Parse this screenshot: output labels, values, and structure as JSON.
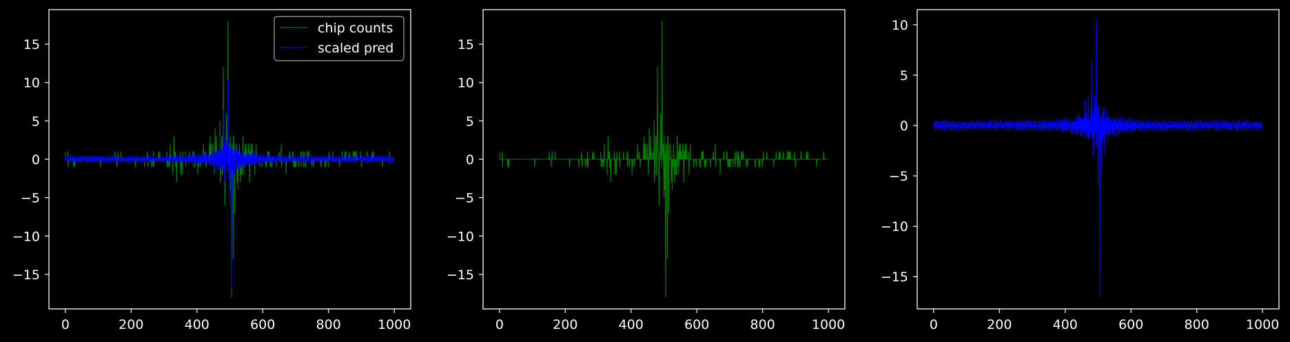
{
  "theme": {
    "background": "#000000",
    "axes_color": "#ffffff",
    "text_color": "#ffffff",
    "legend_edge": "#cccccc"
  },
  "chart_data": [
    {
      "type": "line",
      "panel": "left",
      "xlim": [
        -50,
        1050
      ],
      "ylim": [
        -19.5,
        19.5
      ],
      "xticks": [
        0,
        200,
        400,
        600,
        800,
        1000
      ],
      "yticks": [
        -15,
        -10,
        -5,
        0,
        5,
        10,
        15
      ],
      "grid": false,
      "legend": {
        "placement": "upper-right",
        "entries": [
          "chip counts",
          "scaled pred"
        ]
      },
      "series": [
        {
          "name": "chip counts",
          "color": "#008000",
          "x_range": [
            0,
            999
          ],
          "peaks": [
            {
              "x": 330,
              "y": 3
            },
            {
              "x": 338,
              "y": -3
            },
            {
              "x": 420,
              "y": 2
            },
            {
              "x": 440,
              "y": 3
            },
            {
              "x": 455,
              "y": 4
            },
            {
              "x": 470,
              "y": 5
            },
            {
              "x": 480,
              "y": 12
            },
            {
              "x": 485,
              "y": -6
            },
            {
              "x": 490,
              "y": 6
            },
            {
              "x": 494,
              "y": 18
            },
            {
              "x": 500,
              "y": -5
            },
            {
              "x": 505,
              "y": -18
            },
            {
              "x": 510,
              "y": -13
            },
            {
              "x": 515,
              "y": -7
            },
            {
              "x": 525,
              "y": -4
            },
            {
              "x": 540,
              "y": 3
            },
            {
              "x": 560,
              "y": -3
            },
            {
              "x": 580,
              "y": 2
            }
          ]
        },
        {
          "name": "scaled pred",
          "color": "#0000ff",
          "x_range": [
            0,
            999
          ],
          "peaks": [
            {
              "x": 470,
              "y": 3
            },
            {
              "x": 480,
              "y": 6.5
            },
            {
              "x": 485,
              "y": -3
            },
            {
              "x": 494,
              "y": 10.3
            },
            {
              "x": 500,
              "y": -6
            },
            {
              "x": 505,
              "y": -17
            },
            {
              "x": 512,
              "y": -5
            }
          ]
        }
      ]
    },
    {
      "type": "line",
      "panel": "middle",
      "xlim": [
        -50,
        1050
      ],
      "ylim": [
        -19.5,
        19.5
      ],
      "xticks": [
        0,
        200,
        400,
        600,
        800,
        1000
      ],
      "yticks": [
        -15,
        -10,
        -5,
        0,
        5,
        10,
        15
      ],
      "grid": false,
      "series": [
        {
          "color": "#008000",
          "x_range": [
            0,
            999
          ],
          "peaks": [
            {
              "x": 330,
              "y": 3
            },
            {
              "x": 338,
              "y": -3
            },
            {
              "x": 420,
              "y": 2
            },
            {
              "x": 440,
              "y": 3
            },
            {
              "x": 455,
              "y": 4
            },
            {
              "x": 470,
              "y": 5
            },
            {
              "x": 480,
              "y": 12
            },
            {
              "x": 485,
              "y": -6
            },
            {
              "x": 490,
              "y": 6
            },
            {
              "x": 494,
              "y": 18
            },
            {
              "x": 500,
              "y": -5
            },
            {
              "x": 505,
              "y": -18
            },
            {
              "x": 510,
              "y": -13
            },
            {
              "x": 515,
              "y": -7
            },
            {
              "x": 525,
              "y": -4
            },
            {
              "x": 540,
              "y": 3
            },
            {
              "x": 560,
              "y": -3
            },
            {
              "x": 580,
              "y": 2
            }
          ]
        }
      ]
    },
    {
      "type": "line",
      "panel": "right",
      "xlim": [
        -50,
        1050
      ],
      "ylim": [
        -18.2,
        11.5
      ],
      "xticks": [
        0,
        200,
        400,
        600,
        800,
        1000
      ],
      "yticks": [
        -15,
        -10,
        -5,
        0,
        5,
        10
      ],
      "grid": false,
      "series": [
        {
          "color": "#0000ff",
          "x_range": [
            0,
            999
          ],
          "peaks": [
            {
              "x": 460,
              "y": 2.5
            },
            {
              "x": 470,
              "y": 3
            },
            {
              "x": 480,
              "y": 6.5
            },
            {
              "x": 485,
              "y": -3
            },
            {
              "x": 490,
              "y": 3
            },
            {
              "x": 494,
              "y": 10.3
            },
            {
              "x": 500,
              "y": -6
            },
            {
              "x": 505,
              "y": -17
            },
            {
              "x": 512,
              "y": -5
            },
            {
              "x": 520,
              "y": -3
            }
          ]
        }
      ]
    }
  ]
}
